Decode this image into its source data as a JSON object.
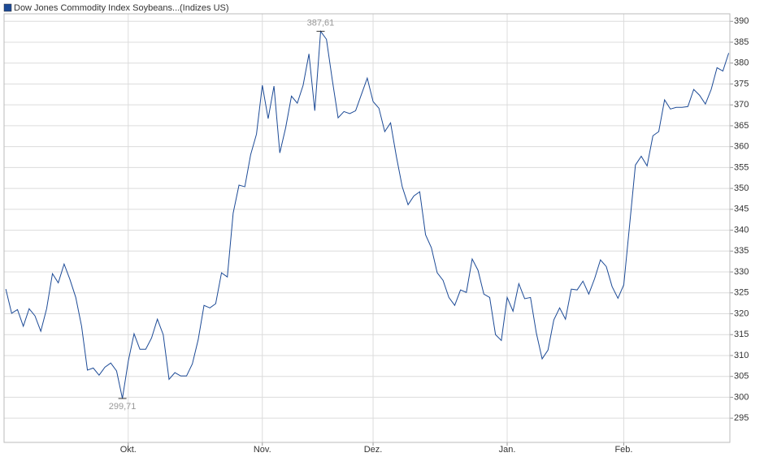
{
  "chart_data": {
    "type": "line",
    "series": [
      {
        "name": "Dow Jones Commodity Index Soybeans...",
        "color": "#1c4a96",
        "values": [
          325.9,
          320.1,
          321.0,
          317.0,
          321.2,
          319.5,
          315.8,
          321.2,
          329.6,
          327.4,
          331.9,
          328.2,
          323.9,
          317.0,
          306.5,
          307.0,
          305.3,
          307.2,
          308.2,
          306.3,
          299.71,
          308.6,
          315.2,
          311.5,
          311.5,
          314.2,
          318.7,
          315.0,
          304.3,
          305.9,
          305.1,
          305.1,
          308.0,
          313.8,
          322.0,
          321.4,
          322.4,
          329.8,
          328.8,
          344.1,
          350.8,
          350.4,
          358.1,
          363.0,
          374.7,
          366.7,
          374.5,
          358.5,
          364.5,
          372.1,
          370.4,
          374.7,
          382.2,
          368.6,
          387.61,
          385.7,
          376.0,
          366.9,
          368.4,
          367.9,
          368.6,
          372.5,
          376.4,
          370.8,
          369.2,
          363.6,
          365.7,
          357.6,
          350.4,
          346.1,
          348.2,
          349.2,
          338.9,
          335.8,
          329.8,
          328.0,
          323.9,
          322.0,
          325.7,
          325.1,
          333.1,
          330.4,
          324.7,
          323.9,
          315.0,
          313.6,
          323.9,
          320.6,
          327.2,
          323.6,
          323.9,
          315.4,
          309.2,
          311.3,
          318.5,
          321.4,
          318.7,
          325.9,
          325.7,
          327.8,
          324.7,
          328.4,
          332.9,
          331.3,
          326.5,
          323.7,
          326.9,
          341.2,
          355.6,
          357.7,
          355.4,
          362.6,
          363.6,
          371.2,
          369.0,
          369.4,
          369.4,
          369.6,
          373.7,
          372.3,
          370.2,
          373.7,
          378.9,
          378.1,
          382.4
        ]
      }
    ],
    "subtitle": "(Indizes US)",
    "categories": [
      null,
      null,
      null,
      null,
      null,
      null,
      null,
      null,
      null,
      null,
      null,
      null,
      null,
      null,
      null,
      null,
      null,
      null,
      null,
      null,
      null,
      "Okt.",
      null,
      null,
      null,
      null,
      null,
      null,
      null,
      null,
      null,
      null,
      null,
      null,
      null,
      null,
      null,
      null,
      null,
      null,
      null,
      null,
      null,
      null,
      "Nov.",
      null,
      null,
      null,
      null,
      null,
      null,
      null,
      null,
      null,
      null,
      null,
      null,
      null,
      null,
      null,
      null,
      null,
      null,
      "Dez.",
      null,
      null,
      null,
      null,
      null,
      null,
      null,
      null,
      null,
      null,
      null,
      null,
      null,
      null,
      null,
      null,
      null,
      null,
      null,
      null,
      null,
      null,
      "Jan.",
      null,
      null,
      null,
      null,
      null,
      null,
      null,
      null,
      null,
      null,
      null,
      null,
      null,
      null,
      null,
      null,
      null,
      null,
      null,
      "Feb.",
      null,
      null,
      null,
      null,
      null,
      null,
      null,
      null,
      null,
      null,
      null,
      null,
      null,
      null,
      null,
      null,
      null,
      null
    ],
    "max_label": "387,61",
    "min_label": "299,71",
    "ylim": [
      289.2,
      391.8
    ],
    "yticks": [
      295,
      300,
      305,
      310,
      315,
      320,
      325,
      330,
      335,
      340,
      345,
      350,
      355,
      360,
      365,
      370,
      375,
      380,
      385,
      390
    ],
    "grid": true
  }
}
